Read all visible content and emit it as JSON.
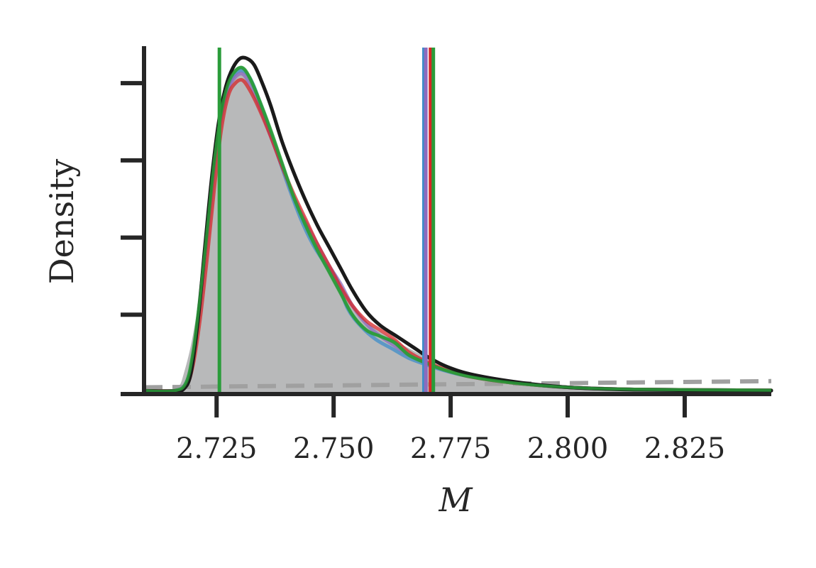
{
  "chart_data": {
    "type": "area",
    "title": "",
    "xlabel": "M",
    "ylabel": "Density",
    "xlim": [
      2.7095,
      2.8435
    ],
    "ylim": [
      0,
      1.12
    ],
    "x_ticks": [
      "2.725",
      "2.750",
      "2.775",
      "2.800",
      "2.825"
    ],
    "x_tick_values": [
      2.725,
      2.75,
      2.775,
      2.8,
      2.825
    ],
    "y_tick_values": [
      0.25,
      0.5,
      0.75,
      1.0
    ],
    "grid": false,
    "legend": "none",
    "filled_density": {
      "color": "#b8b9ba",
      "x": [
        2.7095,
        2.715,
        2.717,
        2.718,
        2.7195,
        2.721,
        2.722,
        2.723,
        2.7245,
        2.726,
        2.7275,
        2.729,
        2.7305,
        2.7315,
        2.733,
        2.735,
        2.7375,
        2.74,
        2.7425,
        2.745,
        2.7475,
        2.75,
        2.7525,
        2.755,
        2.7575,
        2.7605,
        2.763,
        2.765,
        2.7675,
        2.77,
        2.7725,
        2.775,
        2.78,
        2.785,
        2.79,
        2.795,
        2.8,
        2.81,
        2.8435
      ],
      "y": [
        0.005,
        0.005,
        0.02,
        0.06,
        0.15,
        0.28,
        0.41,
        0.57,
        0.72,
        0.88,
        0.98,
        1.035,
        1.05,
        1.04,
        1.0,
        0.92,
        0.81,
        0.7,
        0.6,
        0.52,
        0.45,
        0.38,
        0.32,
        0.26,
        0.22,
        0.19,
        0.17,
        0.15,
        0.13,
        0.11,
        0.085,
        0.07,
        0.055,
        0.04,
        0.03,
        0.02,
        0.012,
        0.008,
        0.005
      ]
    },
    "series": [
      {
        "color": "#1a1a1a",
        "x": [
          2.7095,
          2.716,
          2.718,
          2.7195,
          2.721,
          2.7225,
          2.724,
          2.7255,
          2.727,
          2.7285,
          2.73,
          2.7315,
          2.733,
          2.7345,
          2.7365,
          2.739,
          2.7415,
          2.744,
          2.7465,
          2.749,
          2.7515,
          2.754,
          2.757,
          2.76,
          2.7635,
          2.767,
          2.7705,
          2.7745,
          2.78,
          2.79,
          2.8,
          2.815,
          2.8435
        ],
        "y": [
          0.003,
          0.003,
          0.01,
          0.06,
          0.23,
          0.47,
          0.7,
          0.88,
          0.99,
          1.05,
          1.08,
          1.08,
          1.06,
          1.01,
          0.93,
          0.81,
          0.71,
          0.62,
          0.54,
          0.47,
          0.4,
          0.33,
          0.26,
          0.215,
          0.18,
          0.145,
          0.11,
          0.08,
          0.055,
          0.03,
          0.015,
          0.007,
          0.004
        ]
      },
      {
        "color": "#3d8ec9",
        "x": [
          2.7095,
          2.716,
          2.7185,
          2.72,
          2.7215,
          2.723,
          2.7245,
          2.726,
          2.7275,
          2.729,
          2.7305,
          2.732,
          2.7335,
          2.7355,
          2.738,
          2.7405,
          2.743,
          2.7455,
          2.748,
          2.7505,
          2.753,
          2.756,
          2.759,
          2.7625,
          2.766,
          2.7695,
          2.7735,
          2.779,
          2.788,
          2.8,
          2.815,
          2.8435
        ],
        "y": [
          0.004,
          0.004,
          0.03,
          0.12,
          0.3,
          0.52,
          0.74,
          0.9,
          0.99,
          1.03,
          1.04,
          1.02,
          0.97,
          0.88,
          0.77,
          0.66,
          0.56,
          0.48,
          0.42,
          0.37,
          0.27,
          0.21,
          0.17,
          0.14,
          0.11,
          0.09,
          0.07,
          0.05,
          0.03,
          0.015,
          0.008,
          0.005
        ]
      },
      {
        "color": "#8c6bbd",
        "x": [
          2.7095,
          2.716,
          2.7185,
          2.72,
          2.7215,
          2.723,
          2.7245,
          2.726,
          2.7275,
          2.729,
          2.7305,
          2.732,
          2.734,
          2.7365,
          2.739,
          2.7415,
          2.744,
          2.7465,
          2.749,
          2.7515,
          2.754,
          2.757,
          2.76,
          2.763,
          2.766,
          2.7695,
          2.7735,
          2.779,
          2.788,
          2.8,
          2.815,
          2.8435
        ],
        "y": [
          0.004,
          0.004,
          0.03,
          0.12,
          0.29,
          0.5,
          0.72,
          0.89,
          0.98,
          1.02,
          1.03,
          1.0,
          0.93,
          0.83,
          0.73,
          0.63,
          0.55,
          0.48,
          0.41,
          0.35,
          0.28,
          0.22,
          0.18,
          0.15,
          0.12,
          0.095,
          0.072,
          0.05,
          0.03,
          0.015,
          0.008,
          0.005
        ]
      },
      {
        "color": "#d62728",
        "x": [
          2.7095,
          2.716,
          2.7185,
          2.72,
          2.7215,
          2.723,
          2.7245,
          2.726,
          2.7275,
          2.729,
          2.7305,
          2.732,
          2.734,
          2.7365,
          2.739,
          2.7415,
          2.744,
          2.7465,
          2.749,
          2.7515,
          2.754,
          2.757,
          2.76,
          2.763,
          2.766,
          2.7695,
          2.7735,
          2.779,
          2.788,
          2.8,
          2.815,
          2.8435
        ],
        "y": [
          0.004,
          0.004,
          0.02,
          0.09,
          0.24,
          0.44,
          0.66,
          0.85,
          0.96,
          1.0,
          1.01,
          0.98,
          0.92,
          0.83,
          0.73,
          0.64,
          0.56,
          0.48,
          0.41,
          0.34,
          0.28,
          0.23,
          0.2,
          0.17,
          0.13,
          0.1,
          0.075,
          0.05,
          0.03,
          0.015,
          0.008,
          0.005
        ]
      },
      {
        "color": "#2a9c3a",
        "x": [
          2.7095,
          2.716,
          2.7185,
          2.72,
          2.7215,
          2.723,
          2.7245,
          2.726,
          2.7275,
          2.729,
          2.7305,
          2.732,
          2.734,
          2.7365,
          2.739,
          2.7415,
          2.744,
          2.7465,
          2.749,
          2.7515,
          2.754,
          2.757,
          2.76,
          2.763,
          2.766,
          2.7695,
          2.7735,
          2.779,
          2.788,
          2.8,
          2.815,
          2.8435
        ],
        "y": [
          0.004,
          0.004,
          0.03,
          0.13,
          0.31,
          0.53,
          0.75,
          0.91,
          1.0,
          1.04,
          1.05,
          1.02,
          0.95,
          0.85,
          0.74,
          0.63,
          0.54,
          0.46,
          0.39,
          0.32,
          0.25,
          0.2,
          0.18,
          0.16,
          0.12,
          0.095,
          0.072,
          0.05,
          0.03,
          0.015,
          0.008,
          0.005
        ]
      }
    ],
    "dashed_line": {
      "color": "#a0a0a0",
      "x": [
        2.7095,
        2.8435
      ],
      "y": [
        0.015,
        0.035
      ]
    },
    "vertical_lines": [
      {
        "x": 2.7256,
        "color": "#2a9c3a"
      },
      {
        "x": 2.7693,
        "color": "#3d8ec9"
      },
      {
        "x": 2.7697,
        "color": "#8c6bbd"
      },
      {
        "x": 2.7707,
        "color": "#d62728"
      },
      {
        "x": 2.7713,
        "color": "#2a9c3a"
      }
    ]
  }
}
